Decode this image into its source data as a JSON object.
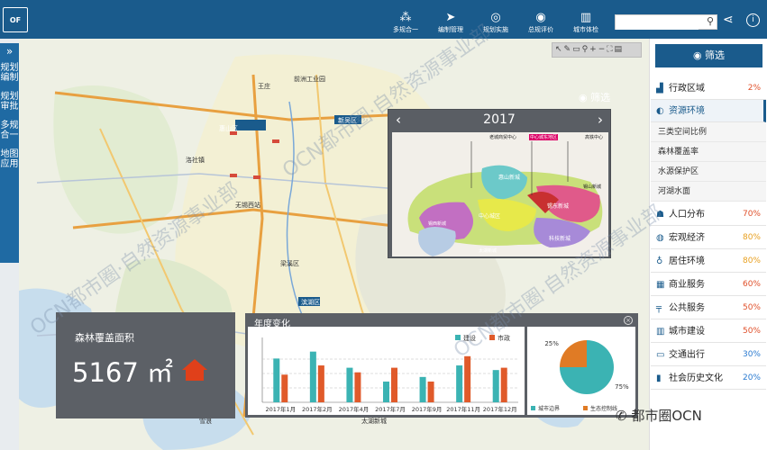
{
  "topbar": {
    "logo": "OF",
    "nav": [
      {
        "label": "多规合一",
        "icon": "cluster-icon"
      },
      {
        "label": "编制管理",
        "icon": "send-icon"
      },
      {
        "label": "规划实施",
        "icon": "target-icon"
      },
      {
        "label": "总规评价",
        "icon": "rating-icon"
      },
      {
        "label": "城市体检",
        "icon": "building-icon"
      }
    ],
    "search_placeholder": ""
  },
  "leftnav": {
    "items": [
      "规划编制",
      "规划审批",
      "多规合一",
      "地图应用"
    ]
  },
  "map": {
    "labels": [
      {
        "text": "王庄"
      },
      {
        "text": "前洲工业园"
      },
      {
        "text": "惠山区"
      },
      {
        "text": "洛社镇"
      },
      {
        "text": "无锡西站"
      },
      {
        "text": "梁溪区"
      },
      {
        "text": "滨湖区"
      },
      {
        "text": "新吴区"
      },
      {
        "text": "雪浪"
      },
      {
        "text": "太湖新城"
      }
    ]
  },
  "popup": {
    "year": "2017",
    "filter_label": "筛选",
    "zones": [
      "老城商贸中心",
      "中心城东地区",
      "高铁中心",
      "惠山新城",
      "中心城区",
      "锡东新城",
      "锡西新城",
      "科技新城",
      "太湖新城",
      "锡山新城"
    ]
  },
  "stat": {
    "label": "森林覆盖面积",
    "value": "5167 ㎡"
  },
  "chart": {
    "title": "年度变化"
  },
  "chart_data": [
    {
      "type": "bar",
      "categories": [
        "2017年1月",
        "2017年2月",
        "2017年4月",
        "2017年7月",
        "2017年9月",
        "2017年11月",
        "2017年12月"
      ],
      "series": [
        {
          "name": "建设",
          "color": "#3bb3b3",
          "values": [
            38,
            44,
            30,
            18,
            22,
            32,
            28
          ]
        },
        {
          "name": "市政",
          "color": "#e05a2a",
          "values": [
            24,
            32,
            26,
            30,
            18,
            40,
            30
          ]
        }
      ]
    },
    {
      "type": "pie",
      "slices": [
        {
          "name": "城市边界",
          "value": 75,
          "label": "75%",
          "color": "#3bb3b3"
        },
        {
          "name": "生态控制线",
          "value": 25,
          "label": "25%",
          "color": "#e07b25"
        }
      ]
    }
  ],
  "right": {
    "filter_label": "筛选",
    "categories": [
      {
        "label": "行政区域",
        "pct": "2%",
        "pct_color": "#e0502a"
      },
      {
        "label": "资源环境",
        "pct": "",
        "pct_color": "#e0502a",
        "active": true
      },
      {
        "label": "人口分布",
        "pct": "70%",
        "pct_color": "#e0502a"
      },
      {
        "label": "宏观经济",
        "pct": "80%",
        "pct_color": "#e8a020"
      },
      {
        "label": "居住环境",
        "pct": "80%",
        "pct_color": "#e8a020"
      },
      {
        "label": "商业服务",
        "pct": "60%",
        "pct_color": "#e0502a"
      },
      {
        "label": "公共服务",
        "pct": "50%",
        "pct_color": "#e0502a"
      },
      {
        "label": "城市建设",
        "pct": "50%",
        "pct_color": "#e0502a"
      },
      {
        "label": "交通出行",
        "pct": "30%",
        "pct_color": "#2a7ad0"
      },
      {
        "label": "社会历史文化",
        "pct": "20%",
        "pct_color": "#2a7ad0"
      }
    ],
    "subitems": [
      "三类空间比例",
      "森林覆盖率",
      "水源保护区",
      "河湖水面"
    ]
  },
  "watermarks": [
    "OCN都市圈·自然资源事业部",
    "OCN都市圈·自然资源事业部",
    "OCN都市圈·自然资源事业部"
  ],
  "wechat": "都市圈OCN"
}
